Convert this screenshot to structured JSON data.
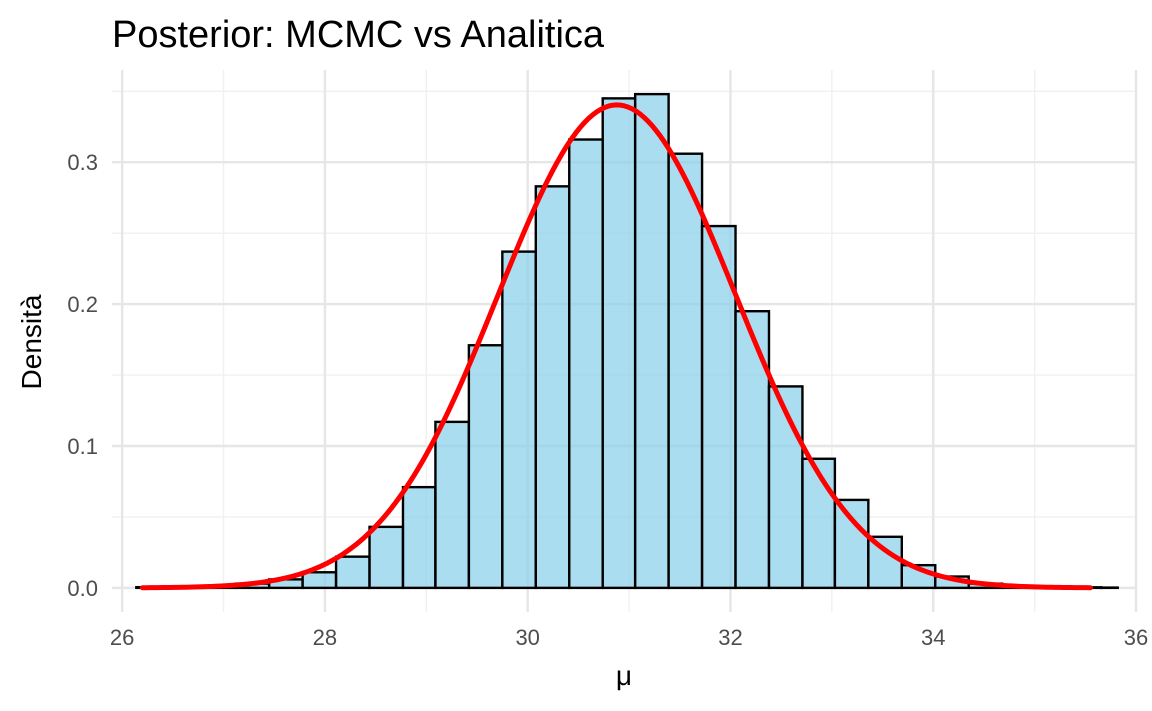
{
  "chart_data": {
    "type": "bar",
    "title": "Posterior: MCMC vs Analitica",
    "xlabel": "μ",
    "ylabel": "Densità",
    "xlim": [
      25.9,
      36.0
    ],
    "ylim": [
      -0.017,
      0.365
    ],
    "x_ticks": [
      26,
      28,
      30,
      32,
      34,
      36
    ],
    "y_ticks": [
      0.0,
      0.1,
      0.2,
      0.3
    ],
    "y_tick_labels": [
      "0.0",
      "0.1",
      "0.2",
      "0.3"
    ],
    "grid": true,
    "colors": {
      "bar_fill": "#87ceeb",
      "bar_edge": "#000000",
      "curve": "#ff0000"
    },
    "series": [
      {
        "kind": "histogram",
        "bin_width": 0.328,
        "bins": [
          {
            "x0": 26.14,
            "x1": 26.47,
            "value": 0.0005
          },
          {
            "x0": 26.47,
            "x1": 26.8,
            "value": 0.0008
          },
          {
            "x0": 26.8,
            "x1": 27.12,
            "value": 0.0015
          },
          {
            "x0": 27.12,
            "x1": 27.45,
            "value": 0.003
          },
          {
            "x0": 27.45,
            "x1": 27.78,
            "value": 0.006
          },
          {
            "x0": 27.78,
            "x1": 28.11,
            "value": 0.011
          },
          {
            "x0": 28.11,
            "x1": 28.44,
            "value": 0.022
          },
          {
            "x0": 28.44,
            "x1": 28.77,
            "value": 0.043
          },
          {
            "x0": 28.77,
            "x1": 29.09,
            "value": 0.071
          },
          {
            "x0": 29.09,
            "x1": 29.42,
            "value": 0.117
          },
          {
            "x0": 29.42,
            "x1": 29.75,
            "value": 0.171
          },
          {
            "x0": 29.75,
            "x1": 30.08,
            "value": 0.237
          },
          {
            "x0": 30.08,
            "x1": 30.41,
            "value": 0.283
          },
          {
            "x0": 30.41,
            "x1": 30.74,
            "value": 0.316
          },
          {
            "x0": 30.74,
            "x1": 31.06,
            "value": 0.345
          },
          {
            "x0": 31.06,
            "x1": 31.39,
            "value": 0.348
          },
          {
            "x0": 31.39,
            "x1": 31.72,
            "value": 0.306
          },
          {
            "x0": 31.72,
            "x1": 32.05,
            "value": 0.255
          },
          {
            "x0": 32.05,
            "x1": 32.38,
            "value": 0.195
          },
          {
            "x0": 32.38,
            "x1": 32.71,
            "value": 0.142
          },
          {
            "x0": 32.71,
            "x1": 33.03,
            "value": 0.091
          },
          {
            "x0": 33.03,
            "x1": 33.36,
            "value": 0.062
          },
          {
            "x0": 33.36,
            "x1": 33.69,
            "value": 0.036
          },
          {
            "x0": 33.69,
            "x1": 34.02,
            "value": 0.016
          },
          {
            "x0": 34.02,
            "x1": 34.35,
            "value": 0.008
          },
          {
            "x0": 34.35,
            "x1": 34.68,
            "value": 0.003
          },
          {
            "x0": 34.68,
            "x1": 35.0,
            "value": 0.0015
          },
          {
            "x0": 35.0,
            "x1": 35.33,
            "value": 0.0007
          },
          {
            "x0": 35.33,
            "x1": 35.66,
            "value": 0.0004
          },
          {
            "x0": 35.66,
            "x1": 35.82,
            "value": 0.0002
          }
        ]
      },
      {
        "kind": "density_line",
        "distribution": "normal",
        "mean": 30.88,
        "sd": 1.172,
        "x_range": [
          26.2,
          35.55
        ]
      }
    ]
  }
}
